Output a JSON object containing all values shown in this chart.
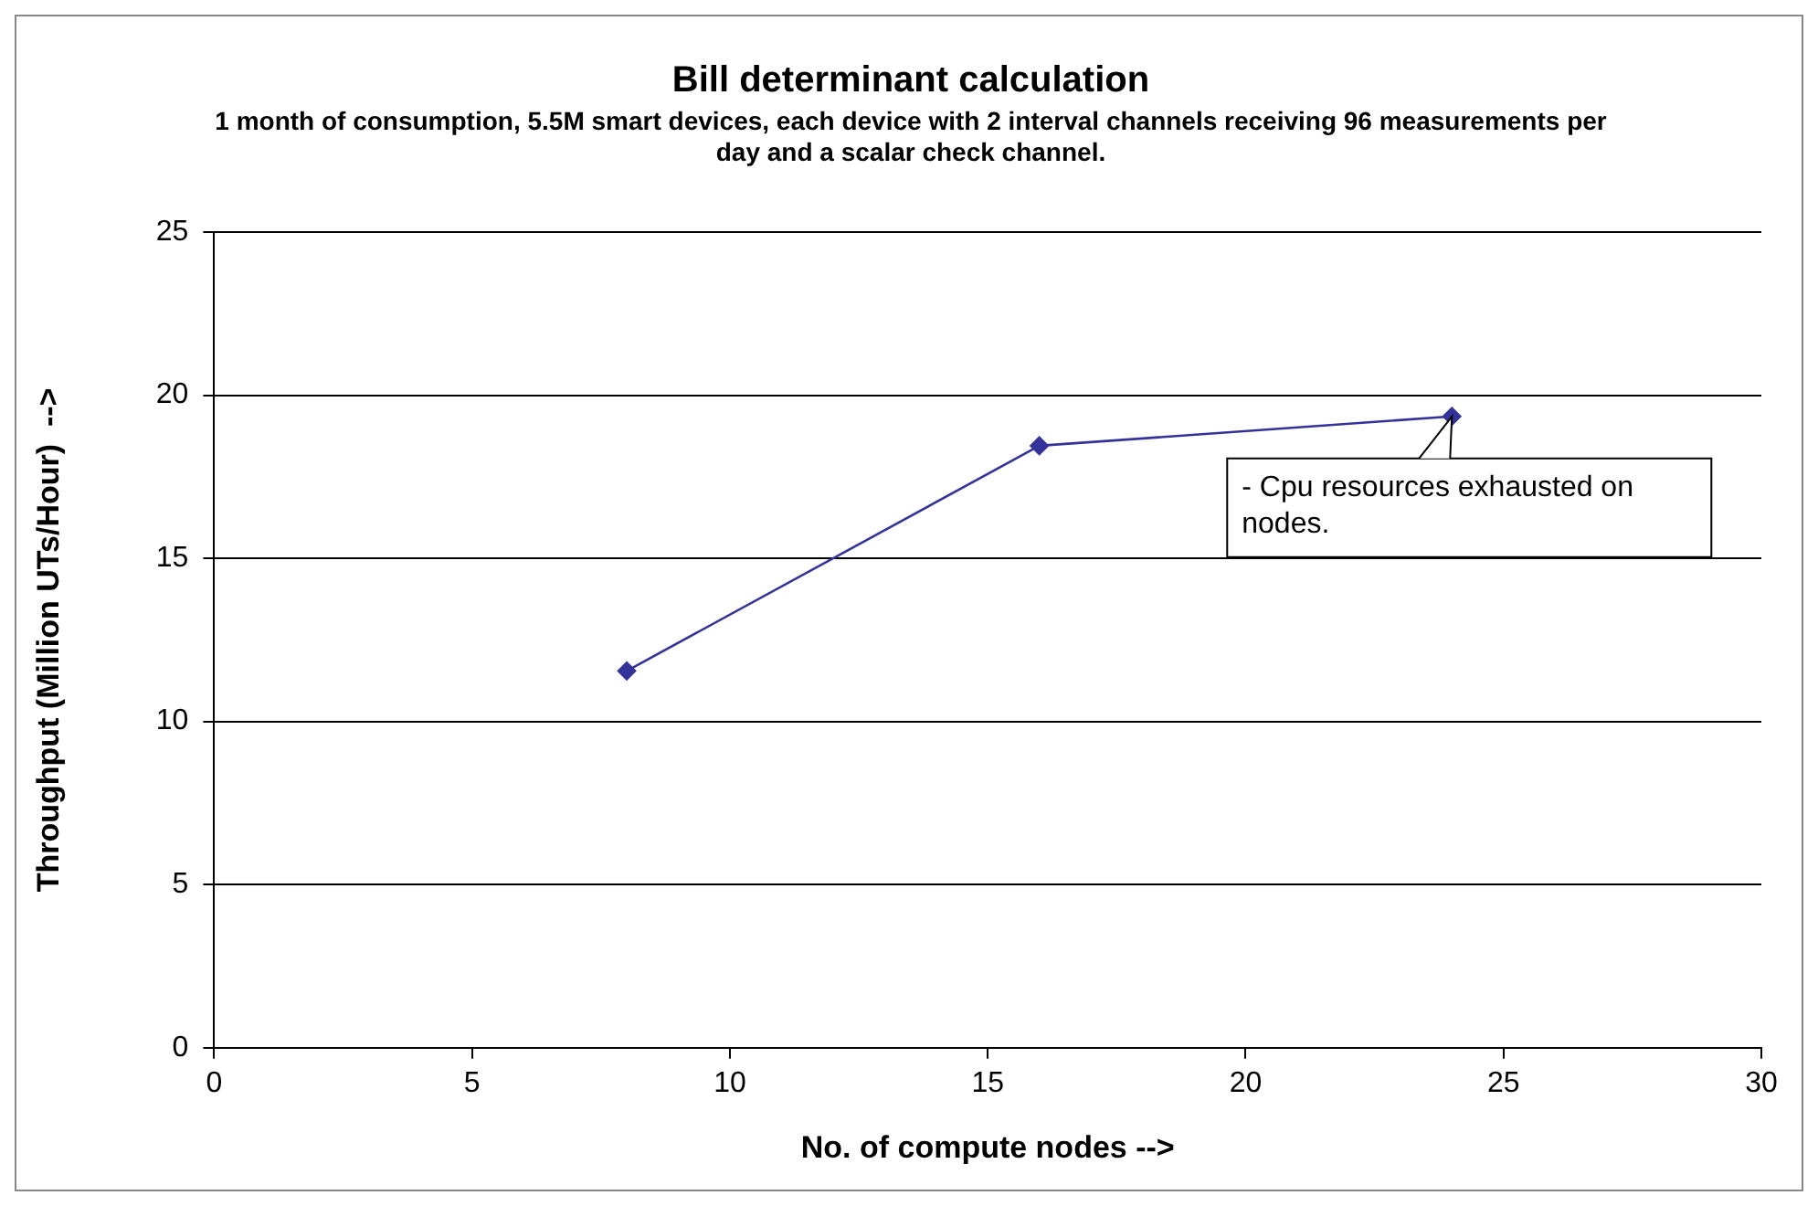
{
  "chart_data": {
    "type": "line",
    "title": "Bill determinant calculation",
    "subtitle": "1 month of consumption, 5.5M smart devices, each device with 2 interval channels receiving 96 measurements per day and a scalar check channel.",
    "xlabel": "No. of compute nodes -->",
    "ylabel": "Throughput (Million UTs/Hour)  -->",
    "x": [
      8,
      16,
      24
    ],
    "series": [
      {
        "color": "#333399",
        "values": [
          11.55,
          18.45,
          19.35
        ]
      }
    ],
    "xlim": [
      0,
      30
    ],
    "xticks": [
      0,
      5,
      10,
      15,
      20,
      25,
      30
    ],
    "ylim": [
      0,
      25
    ],
    "yticks": [
      0,
      5,
      10,
      15,
      20,
      25
    ],
    "grid": "y",
    "legend": false,
    "marker": "diamond",
    "line_style": "solid",
    "annotations": [
      {
        "text": "- Cpu resources exhausted on nodes.",
        "x": 24,
        "y": 19.35
      }
    ]
  }
}
